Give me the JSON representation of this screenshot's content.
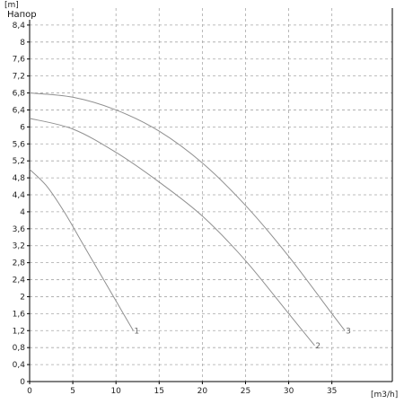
{
  "chart_data": {
    "type": "line",
    "title": "Напор",
    "ylabel": "[m]",
    "xlabel": "[m3/h]",
    "xlim": [
      0,
      42
    ],
    "ylim": [
      0,
      8.8
    ],
    "x_ticks": [
      0,
      5,
      10,
      15,
      20,
      25,
      30,
      35
    ],
    "y_ticks": [
      0,
      0.4,
      0.8,
      1.2,
      1.6,
      2,
      2.4,
      2.8,
      3.2,
      3.6,
      4,
      4.4,
      4.8,
      5.2,
      5.6,
      6,
      6.4,
      6.8,
      7.2,
      7.6,
      8,
      8.4
    ],
    "y_tick_labels": [
      "0",
      "0,4",
      "0,8",
      "1,2",
      "1,6",
      "2",
      "2,4",
      "2,8",
      "3,2",
      "3,6",
      "4",
      "4,4",
      "4,8",
      "5,2",
      "5,6",
      "6",
      "6,4",
      "6,8",
      "7,2",
      "7,6",
      "8",
      "8,4"
    ],
    "grid": true,
    "series": [
      {
        "name": "1",
        "x": [
          0,
          2,
          4,
          6,
          8,
          10,
          12
        ],
        "y": [
          5.0,
          4.6,
          4.0,
          3.3,
          2.6,
          1.9,
          1.2
        ]
      },
      {
        "name": "2",
        "x": [
          0,
          5,
          10,
          15,
          20,
          25,
          30,
          33
        ],
        "y": [
          6.2,
          5.95,
          5.4,
          4.7,
          3.9,
          2.85,
          1.6,
          0.85
        ]
      },
      {
        "name": "3",
        "x": [
          0,
          5,
          10,
          15,
          20,
          25,
          30,
          35,
          36.5
        ],
        "y": [
          6.8,
          6.7,
          6.4,
          5.9,
          5.15,
          4.15,
          2.95,
          1.6,
          1.2
        ]
      }
    ],
    "colors": {
      "curve": "#909090",
      "grid": "#a8a8a8",
      "axis": "#000000",
      "background": "#ffffff"
    }
  }
}
